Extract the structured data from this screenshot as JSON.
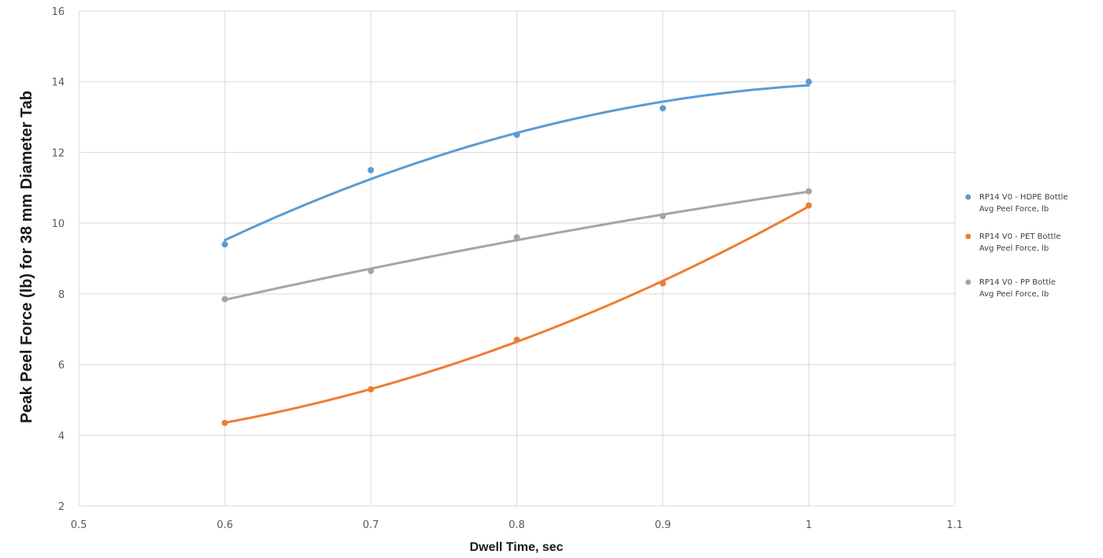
{
  "chart_data": {
    "type": "scatter",
    "title": "",
    "xlabel": "Dwell Time, sec",
    "ylabel": "Peak Peel Force (lb) for 38 mm Diameter Tab",
    "xlim": [
      0.5,
      1.1
    ],
    "ylim": [
      2,
      16
    ],
    "xticks": [
      0.5,
      0.6,
      0.7,
      0.8,
      0.9,
      1,
      1.1
    ],
    "xtick_labels": [
      "0.5",
      "0.6",
      "0.7",
      "0.8",
      "0.9",
      "1",
      "1.1"
    ],
    "yticks": [
      2,
      4,
      6,
      8,
      10,
      12,
      14,
      16
    ],
    "ytick_labels": [
      "2",
      "4",
      "6",
      "8",
      "10",
      "12",
      "14",
      "16"
    ],
    "grid": true,
    "legend_position": "right",
    "trendline": "polynomial (order 2)",
    "series": [
      {
        "name_lines": [
          "RP14 V0 - HDPE Bottle",
          "Avg Peel Force, lb"
        ],
        "color": "#5b9bd5",
        "x": [
          0.6,
          0.7,
          0.8,
          0.9,
          1.0
        ],
        "y": [
          9.4,
          11.5,
          12.5,
          13.25,
          14.0
        ]
      },
      {
        "name_lines": [
          "RP14 V0 - PET Bottle",
          "Avg Peel Force, lb"
        ],
        "color": "#ed7d31",
        "x": [
          0.6,
          0.7,
          0.8,
          0.9,
          1.0
        ],
        "y": [
          4.35,
          5.3,
          6.7,
          8.3,
          10.5
        ]
      },
      {
        "name_lines": [
          "RP14 V0 - PP Bottle",
          "Avg Peel Force, lb"
        ],
        "color": "#a5a5a5",
        "x": [
          0.6,
          0.7,
          0.8,
          0.9,
          1.0
        ],
        "y": [
          7.85,
          8.65,
          9.6,
          10.2,
          10.9
        ]
      }
    ]
  }
}
